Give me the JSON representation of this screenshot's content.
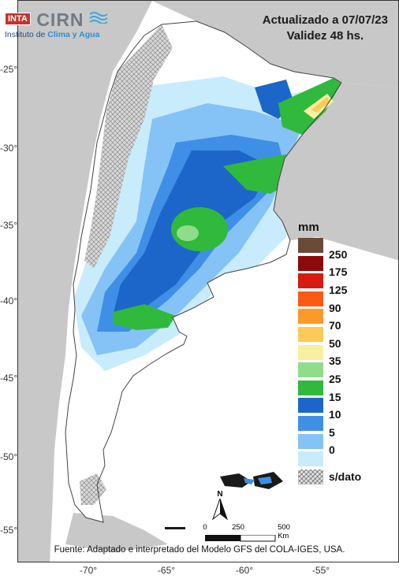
{
  "logo": {
    "agency": "INTA",
    "name": "CIRN",
    "subtitle_pre": "Instituto de",
    "subtitle_highlight": "Clima y Agua"
  },
  "header": {
    "updated": "Actualizado a 07/07/23",
    "validity": "Validez 48 hs."
  },
  "legend": {
    "unit": "mm",
    "classes": [
      {
        "label": "250",
        "color": "#6b4a3a"
      },
      {
        "label": "175",
        "color": "#8c0a0a"
      },
      {
        "label": "125",
        "color": "#d81b10"
      },
      {
        "label": "90",
        "color": "#fb5a14"
      },
      {
        "label": "70",
        "color": "#fb9a28"
      },
      {
        "label": "50",
        "color": "#fcca55"
      },
      {
        "label": "35",
        "color": "#f7f0a0"
      },
      {
        "label": "25",
        "color": "#8fdd8b"
      },
      {
        "label": "15",
        "color": "#30b93d"
      },
      {
        "label": "10",
        "color": "#1c66c9"
      },
      {
        "label": "5",
        "color": "#3f8fe6"
      },
      {
        "label": "0",
        "color": "#85c2f5"
      },
      {
        "label": "",
        "color": "#c8ecfb"
      },
      {
        "label": "s/dato",
        "color": "pattern"
      }
    ],
    "first_swatch_color": "#6b4a3a",
    "base_color": "#ffffff"
  },
  "axes": {
    "lat_ticks": [
      "-25°",
      "-30°",
      "-35°",
      "-40°",
      "-45°",
      "-50°",
      "-55°"
    ],
    "lon_ticks": [
      "-70°",
      "-65°",
      "-60°",
      "-55°"
    ]
  },
  "scale": {
    "north": "N",
    "labels": [
      "0",
      "250",
      "500 Km"
    ]
  },
  "footer": {
    "source": "Fuente: Adaptado e interpretado del Modelo GFS del COLA-IGES, USA."
  },
  "colors": {
    "land": "#c8c8c8",
    "sea": "#ffffff",
    "no_data": "#c9c9c9"
  }
}
